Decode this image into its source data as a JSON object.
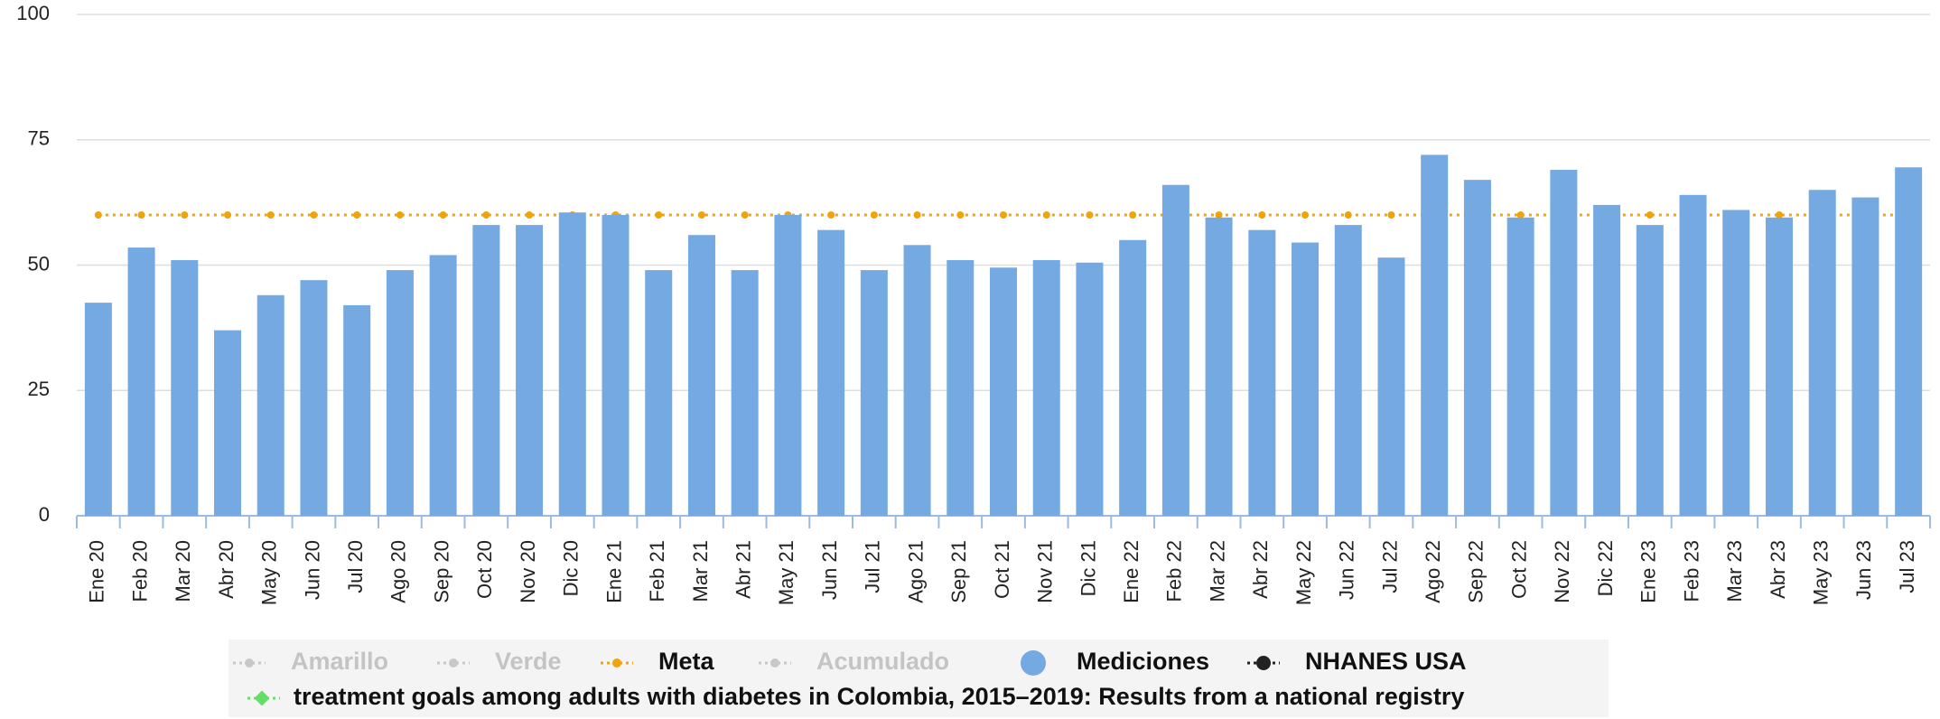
{
  "chart_data": {
    "type": "bar",
    "categories": [
      "Ene 20",
      "Feb 20",
      "Mar 20",
      "Abr 20",
      "May 20",
      "Jun 20",
      "Jul 20",
      "Ago 20",
      "Sep 20",
      "Oct 20",
      "Nov 20",
      "Dic 20",
      "Ene 21",
      "Feb 21",
      "Mar 21",
      "Abr 21",
      "May 21",
      "Jun 21",
      "Jul 21",
      "Ago 21",
      "Sep 21",
      "Oct 21",
      "Nov 21",
      "Dic 21",
      "Ene 22",
      "Feb 22",
      "Mar 22",
      "Abr 22",
      "May 22",
      "Jun 22",
      "Jul 22",
      "Ago 22",
      "Sep 22",
      "Oct 22",
      "Nov 22",
      "Dic 22",
      "Ene 23",
      "Feb 23",
      "Mar 23",
      "Abr 23",
      "May 23",
      "Jun 23",
      "Jul 23"
    ],
    "series": [
      {
        "name": "Amarillo",
        "color": "#c8c8c8",
        "visible": false,
        "marker": "line"
      },
      {
        "name": "Verde",
        "color": "#c8c8c8",
        "visible": false,
        "marker": "line"
      },
      {
        "name": "Meta",
        "color": "#f0a30a",
        "visible": true,
        "marker": "line",
        "values": [
          60,
          60,
          60,
          60,
          60,
          60,
          60,
          60,
          60,
          60,
          60,
          60,
          60,
          60,
          60,
          60,
          60,
          60,
          60,
          60,
          60,
          60,
          60,
          60,
          60,
          60,
          60,
          60,
          60,
          60,
          60,
          60,
          60,
          60,
          60,
          60,
          60,
          60,
          60,
          60,
          60,
          60,
          60
        ]
      },
      {
        "name": "Acumulado",
        "color": "#c8c8c8",
        "visible": false,
        "marker": "line"
      },
      {
        "name": "Mediciones",
        "color": "#74a9e1",
        "visible": true,
        "marker": "circle",
        "values": [
          42.5,
          53.5,
          51,
          37,
          44,
          47,
          42,
          49,
          52,
          58,
          58,
          60.5,
          60,
          49,
          56,
          49,
          60,
          57,
          49,
          54,
          51,
          49.5,
          51,
          50.5,
          55,
          66,
          59.5,
          57,
          54.5,
          58,
          51.5,
          72,
          67,
          59.5,
          69,
          62,
          58,
          64,
          61,
          59.5,
          65,
          63.5,
          69.5
        ]
      },
      {
        "name": "NHANES USA",
        "color": "#222222",
        "visible": true,
        "marker": "line"
      },
      {
        "name": "treatment goals among adults with diabetes in Colombia, 2015–2019: Results from a national registry",
        "color": "#66dd66",
        "visible": true,
        "marker": "diamond"
      }
    ],
    "ylim": [
      0,
      100
    ],
    "yticks": [
      0,
      25,
      50,
      75,
      100
    ],
    "grid": true
  }
}
